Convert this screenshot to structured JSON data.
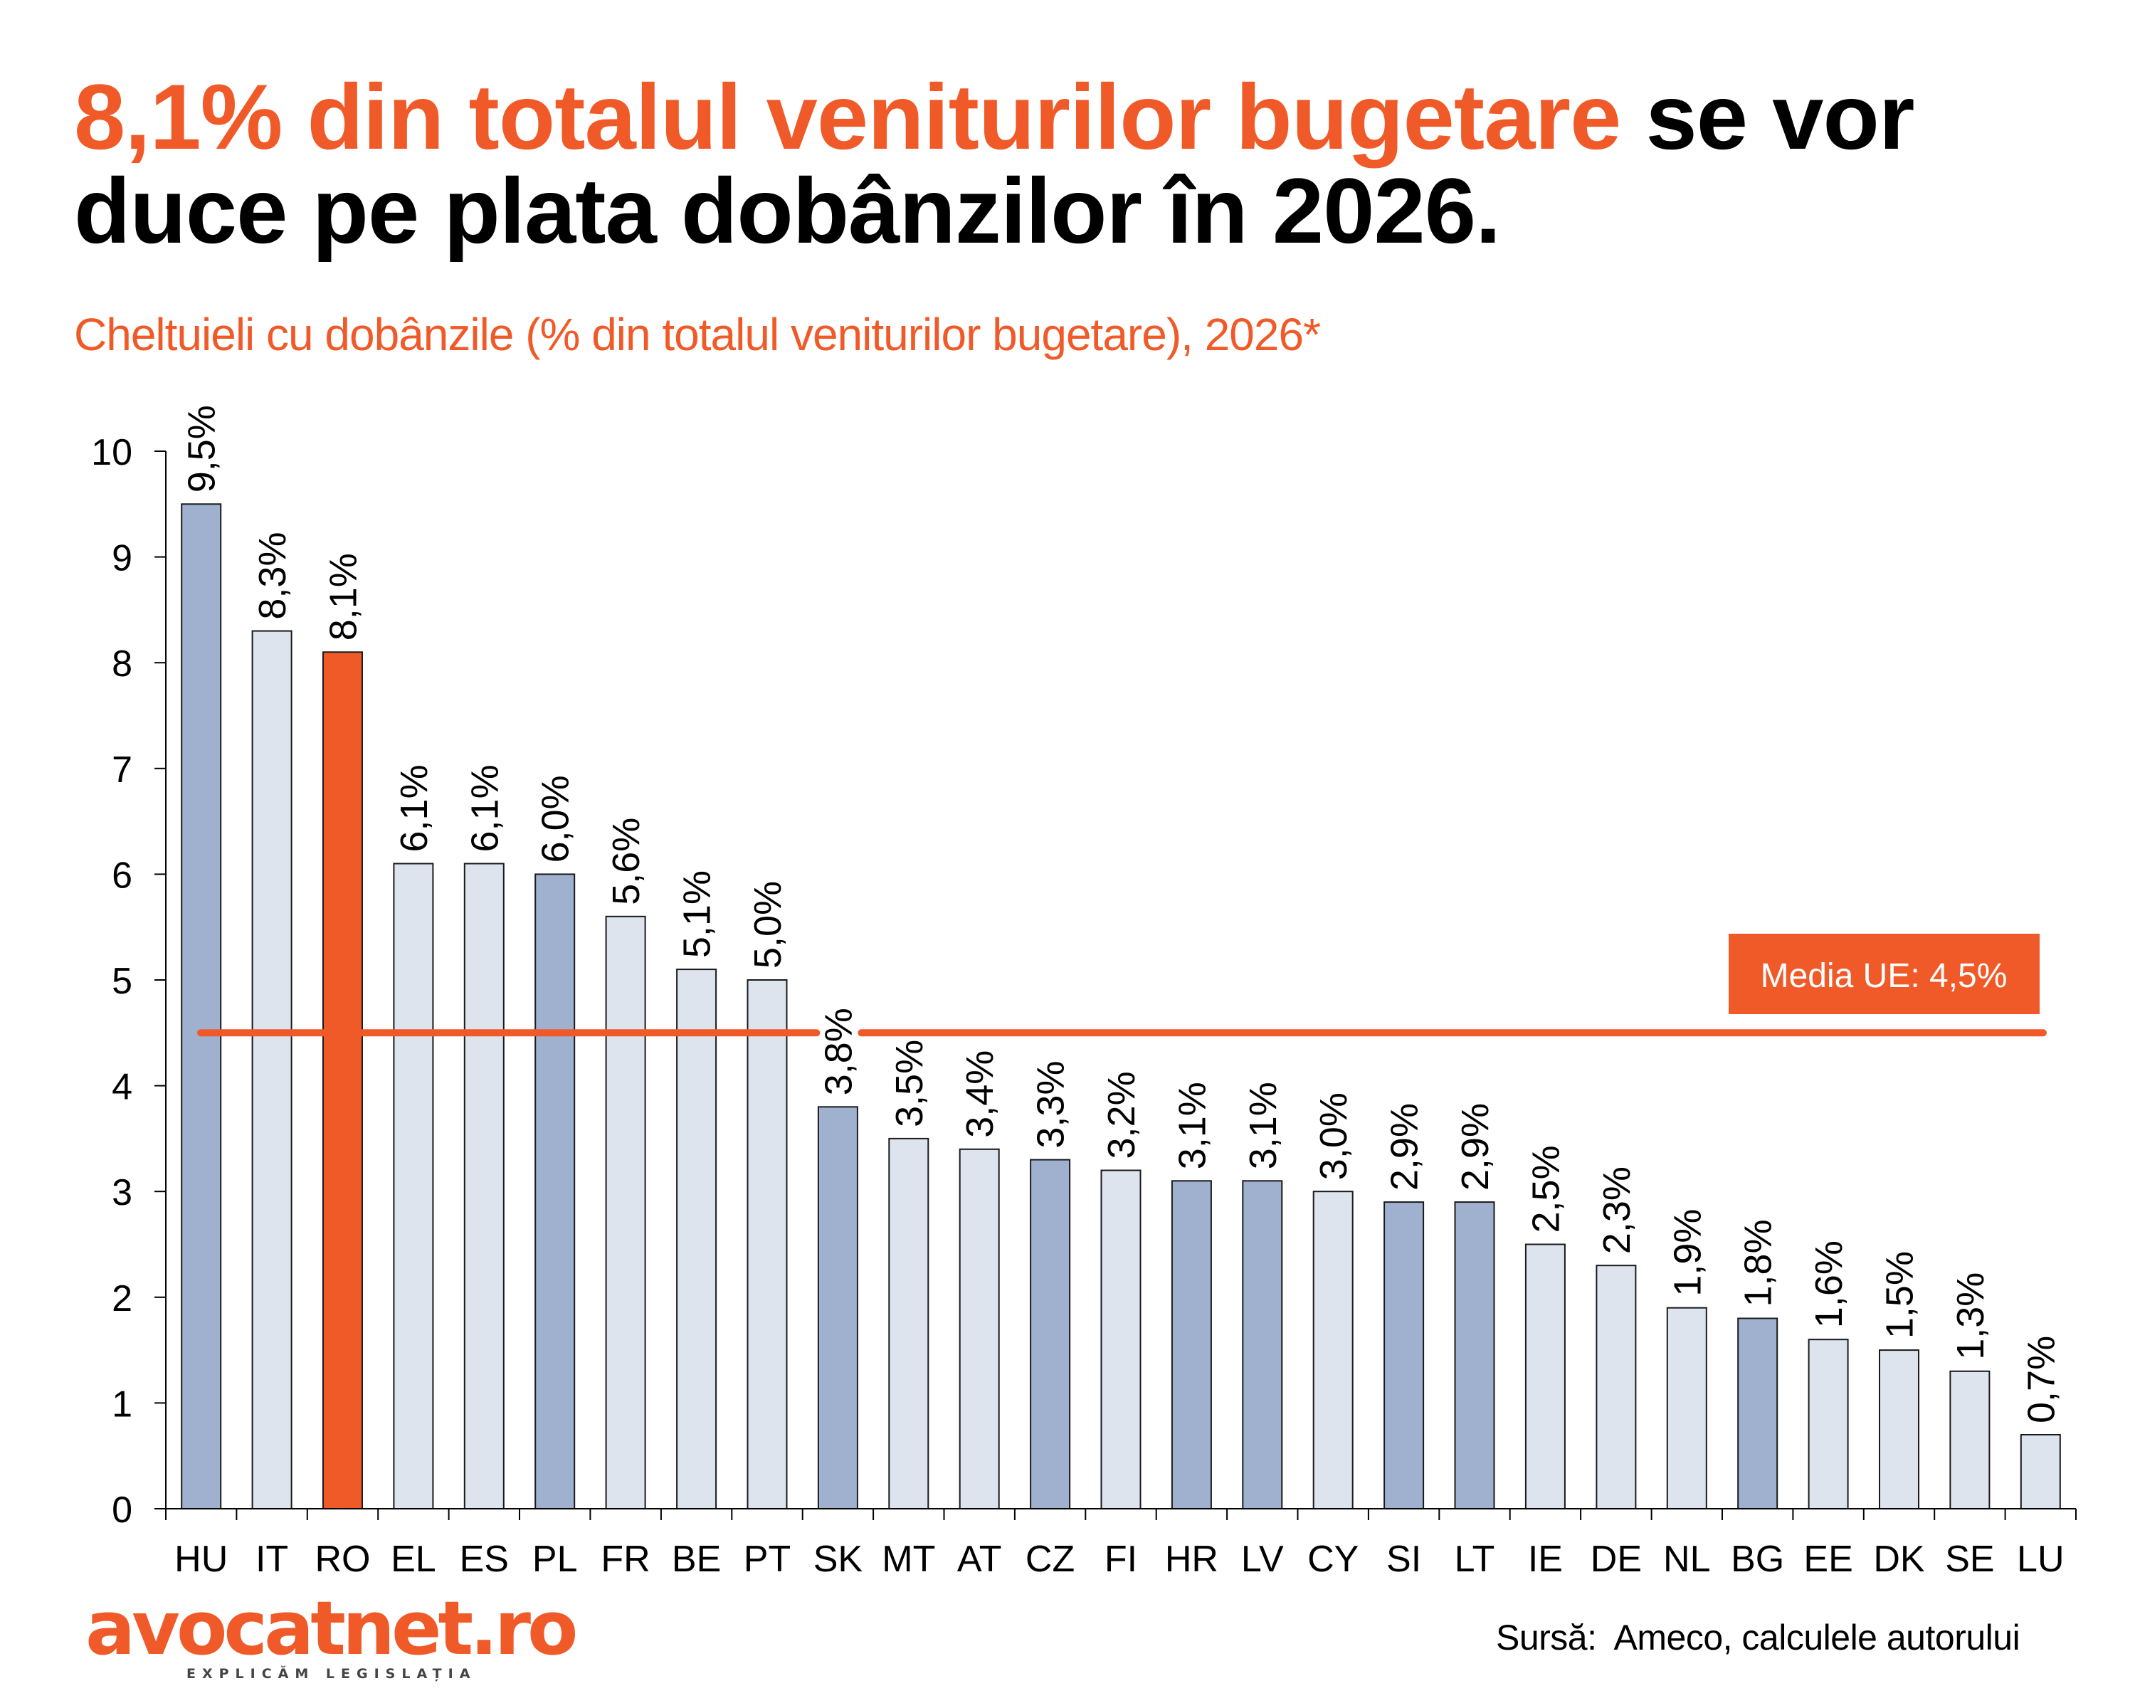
{
  "header": {
    "title_highlight": "8,1% din totalul veniturilor bugetare",
    "title_rest": " se vor duce pe plata dobânzilor în 2026.",
    "subtitle": "Cheltuieli cu dobânzile (% din totalul veniturilor bugetare), 2026*"
  },
  "footer": {
    "logo_text": "avocatnet.ro",
    "logo_tagline": "EXPLICĂM LEGISLAȚIA",
    "source": "Sursă:  Ameco, calculele autorului"
  },
  "colors": {
    "accent": "#f05a28",
    "bar_dark": "#9fb1cf",
    "bar_light": "#dee4ee",
    "bar_highlight": "#f05a28",
    "outline": "#1a1a1a"
  },
  "chart_data": {
    "type": "bar",
    "title": "Cheltuieli cu dobânzile (% din totalul veniturilor bugetare), 2026*",
    "xlabel": "",
    "ylabel": "",
    "ylim": [
      0,
      10
    ],
    "yticks": [
      0,
      1,
      2,
      3,
      4,
      5,
      6,
      7,
      8,
      9,
      10
    ],
    "grid": false,
    "categories": [
      "HU",
      "IT",
      "RO",
      "EL",
      "ES",
      "PL",
      "FR",
      "BE",
      "PT",
      "SK",
      "MT",
      "AT",
      "CZ",
      "FI",
      "HR",
      "LV",
      "CY",
      "SI",
      "LT",
      "IE",
      "DE",
      "NL",
      "BG",
      "EE",
      "DK",
      "SE",
      "LU"
    ],
    "values": [
      9.5,
      8.3,
      8.1,
      6.1,
      6.1,
      6.0,
      5.6,
      5.1,
      5.0,
      3.8,
      3.5,
      3.4,
      3.3,
      3.2,
      3.1,
      3.1,
      3.0,
      2.9,
      2.9,
      2.5,
      2.3,
      1.9,
      1.8,
      1.6,
      1.5,
      1.3,
      0.7
    ],
    "value_labels": [
      "9,5%",
      "8,3%",
      "8,1%",
      "6,1%",
      "6,1%",
      "6,0%",
      "5,6%",
      "5,1%",
      "5,0%",
      "3,8%",
      "3,5%",
      "3,4%",
      "3,3%",
      "3,2%",
      "3,1%",
      "3,1%",
      "3,0%",
      "2,9%",
      "2,9%",
      "2,5%",
      "2,3%",
      "1,9%",
      "1,8%",
      "1,6%",
      "1,5%",
      "1,3%",
      "0,7%"
    ],
    "bar_styles": [
      "dark",
      "light",
      "highlight",
      "light",
      "light",
      "dark",
      "light",
      "light",
      "light",
      "dark",
      "light",
      "light",
      "dark",
      "light",
      "dark",
      "dark",
      "light",
      "dark",
      "dark",
      "light",
      "light",
      "light",
      "dark",
      "light",
      "light",
      "light",
      "light"
    ],
    "reference_line": {
      "value": 4.5,
      "label": "Media UE: 4,5%"
    }
  }
}
